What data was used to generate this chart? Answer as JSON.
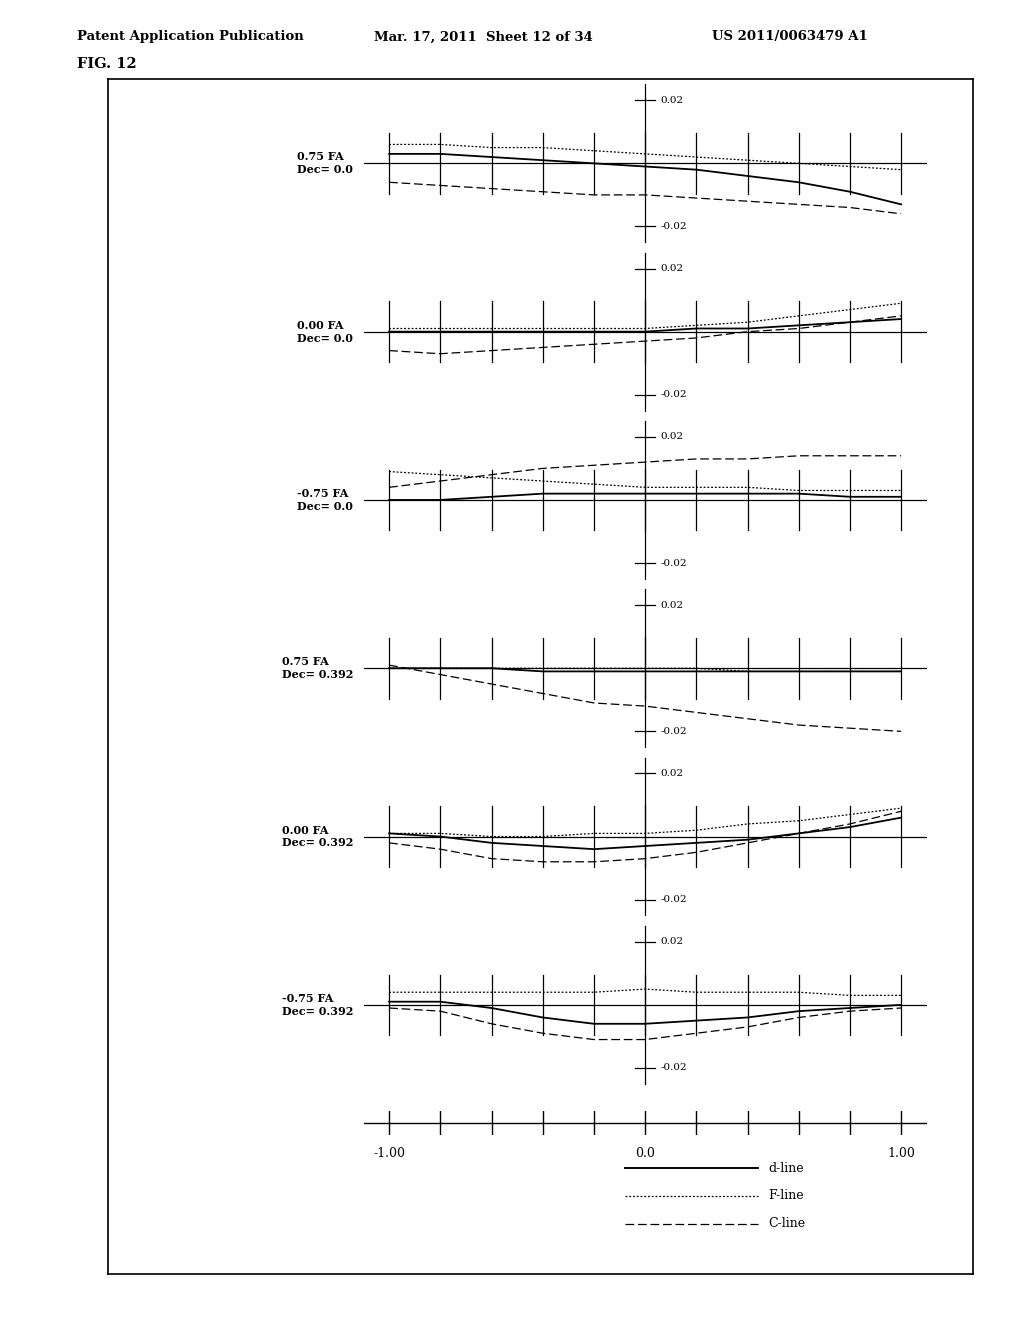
{
  "title_line1": "Patent Application Publication",
  "title_line2": "Mar. 17, 2011  Sheet 12 of 34",
  "title_line3": "US 2011/0063479 A1",
  "fig_label": "FIG. 12",
  "subplots": [
    {
      "label_fa": "0.75 FA",
      "label_dec": "Dec= 0.0",
      "d_line": [
        0.003,
        0.003,
        0.002,
        0.001,
        0.0,
        -0.001,
        -0.002,
        -0.004,
        -0.006,
        -0.009,
        -0.013
      ],
      "f_line": [
        0.006,
        0.006,
        0.005,
        0.005,
        0.004,
        0.003,
        0.002,
        0.001,
        0.0,
        -0.001,
        -0.002
      ],
      "c_line": [
        -0.006,
        -0.007,
        -0.008,
        -0.009,
        -0.01,
        -0.01,
        -0.011,
        -0.012,
        -0.013,
        -0.014,
        -0.016
      ]
    },
    {
      "label_fa": "0.00 FA",
      "label_dec": "Dec= 0.0",
      "d_line": [
        0.0,
        0.0,
        0.0,
        0.0,
        0.0,
        0.0,
        0.001,
        0.001,
        0.002,
        0.003,
        0.004
      ],
      "f_line": [
        0.001,
        0.001,
        0.001,
        0.001,
        0.001,
        0.001,
        0.002,
        0.003,
        0.005,
        0.007,
        0.009
      ],
      "c_line": [
        -0.006,
        -0.007,
        -0.006,
        -0.005,
        -0.004,
        -0.003,
        -0.002,
        0.0,
        0.001,
        0.003,
        0.005
      ]
    },
    {
      "label_fa": "-0.75 FA",
      "label_dec": "Dec= 0.0",
      "d_line": [
        0.0,
        0.0,
        0.001,
        0.002,
        0.002,
        0.002,
        0.002,
        0.002,
        0.002,
        0.001,
        0.001
      ],
      "f_line": [
        0.009,
        0.008,
        0.007,
        0.006,
        0.005,
        0.004,
        0.004,
        0.004,
        0.003,
        0.003,
        0.003
      ],
      "c_line": [
        0.004,
        0.006,
        0.008,
        0.01,
        0.011,
        0.012,
        0.013,
        0.013,
        0.014,
        0.014,
        0.014
      ]
    },
    {
      "label_fa": "0.75 FA",
      "label_dec": "Dec= 0.392",
      "d_line": [
        0.0,
        0.0,
        0.0,
        -0.001,
        -0.001,
        -0.001,
        -0.001,
        -0.001,
        -0.001,
        -0.001,
        -0.001
      ],
      "f_line": [
        0.0,
        0.0,
        0.0,
        0.0,
        0.0,
        0.0,
        0.0,
        -0.001,
        -0.001,
        -0.001,
        -0.001
      ],
      "c_line": [
        0.001,
        -0.002,
        -0.005,
        -0.008,
        -0.011,
        -0.012,
        -0.014,
        -0.016,
        -0.018,
        -0.019,
        -0.02
      ]
    },
    {
      "label_fa": "0.00 FA",
      "label_dec": "Dec= 0.392",
      "d_line": [
        0.001,
        0.0,
        -0.002,
        -0.003,
        -0.004,
        -0.003,
        -0.002,
        -0.001,
        0.001,
        0.003,
        0.006
      ],
      "f_line": [
        0.001,
        0.001,
        0.0,
        0.0,
        0.001,
        0.001,
        0.002,
        0.004,
        0.005,
        0.007,
        0.009
      ],
      "c_line": [
        -0.002,
        -0.004,
        -0.007,
        -0.008,
        -0.008,
        -0.007,
        -0.005,
        -0.002,
        0.001,
        0.004,
        0.008
      ]
    },
    {
      "label_fa": "-0.75 FA",
      "label_dec": "Dec= 0.392",
      "d_line": [
        0.001,
        0.001,
        -0.001,
        -0.004,
        -0.006,
        -0.006,
        -0.005,
        -0.004,
        -0.002,
        -0.001,
        0.0
      ],
      "f_line": [
        0.004,
        0.004,
        0.004,
        0.004,
        0.004,
        0.005,
        0.004,
        0.004,
        0.004,
        0.003,
        0.003
      ],
      "c_line": [
        -0.001,
        -0.002,
        -0.006,
        -0.009,
        -0.011,
        -0.011,
        -0.009,
        -0.007,
        -0.004,
        -0.002,
        -0.001
      ]
    }
  ],
  "x_values": [
    -1.0,
    -0.8,
    -0.6,
    -0.4,
    -0.2,
    0.0,
    0.2,
    0.4,
    0.6,
    0.8,
    1.0
  ],
  "ylim": [
    -0.025,
    0.025
  ],
  "xlim": [
    -1.1,
    1.1
  ],
  "bg_color": "#ffffff",
  "legend_d": "d-line",
  "legend_f": "F-line",
  "legend_c": "C-line",
  "header1": "Patent Application Publication",
  "header2": "Mar. 17, 2011  Sheet 12 of 34",
  "header3": "US 2011/0063479 A1",
  "fig_title": "FIG. 12"
}
